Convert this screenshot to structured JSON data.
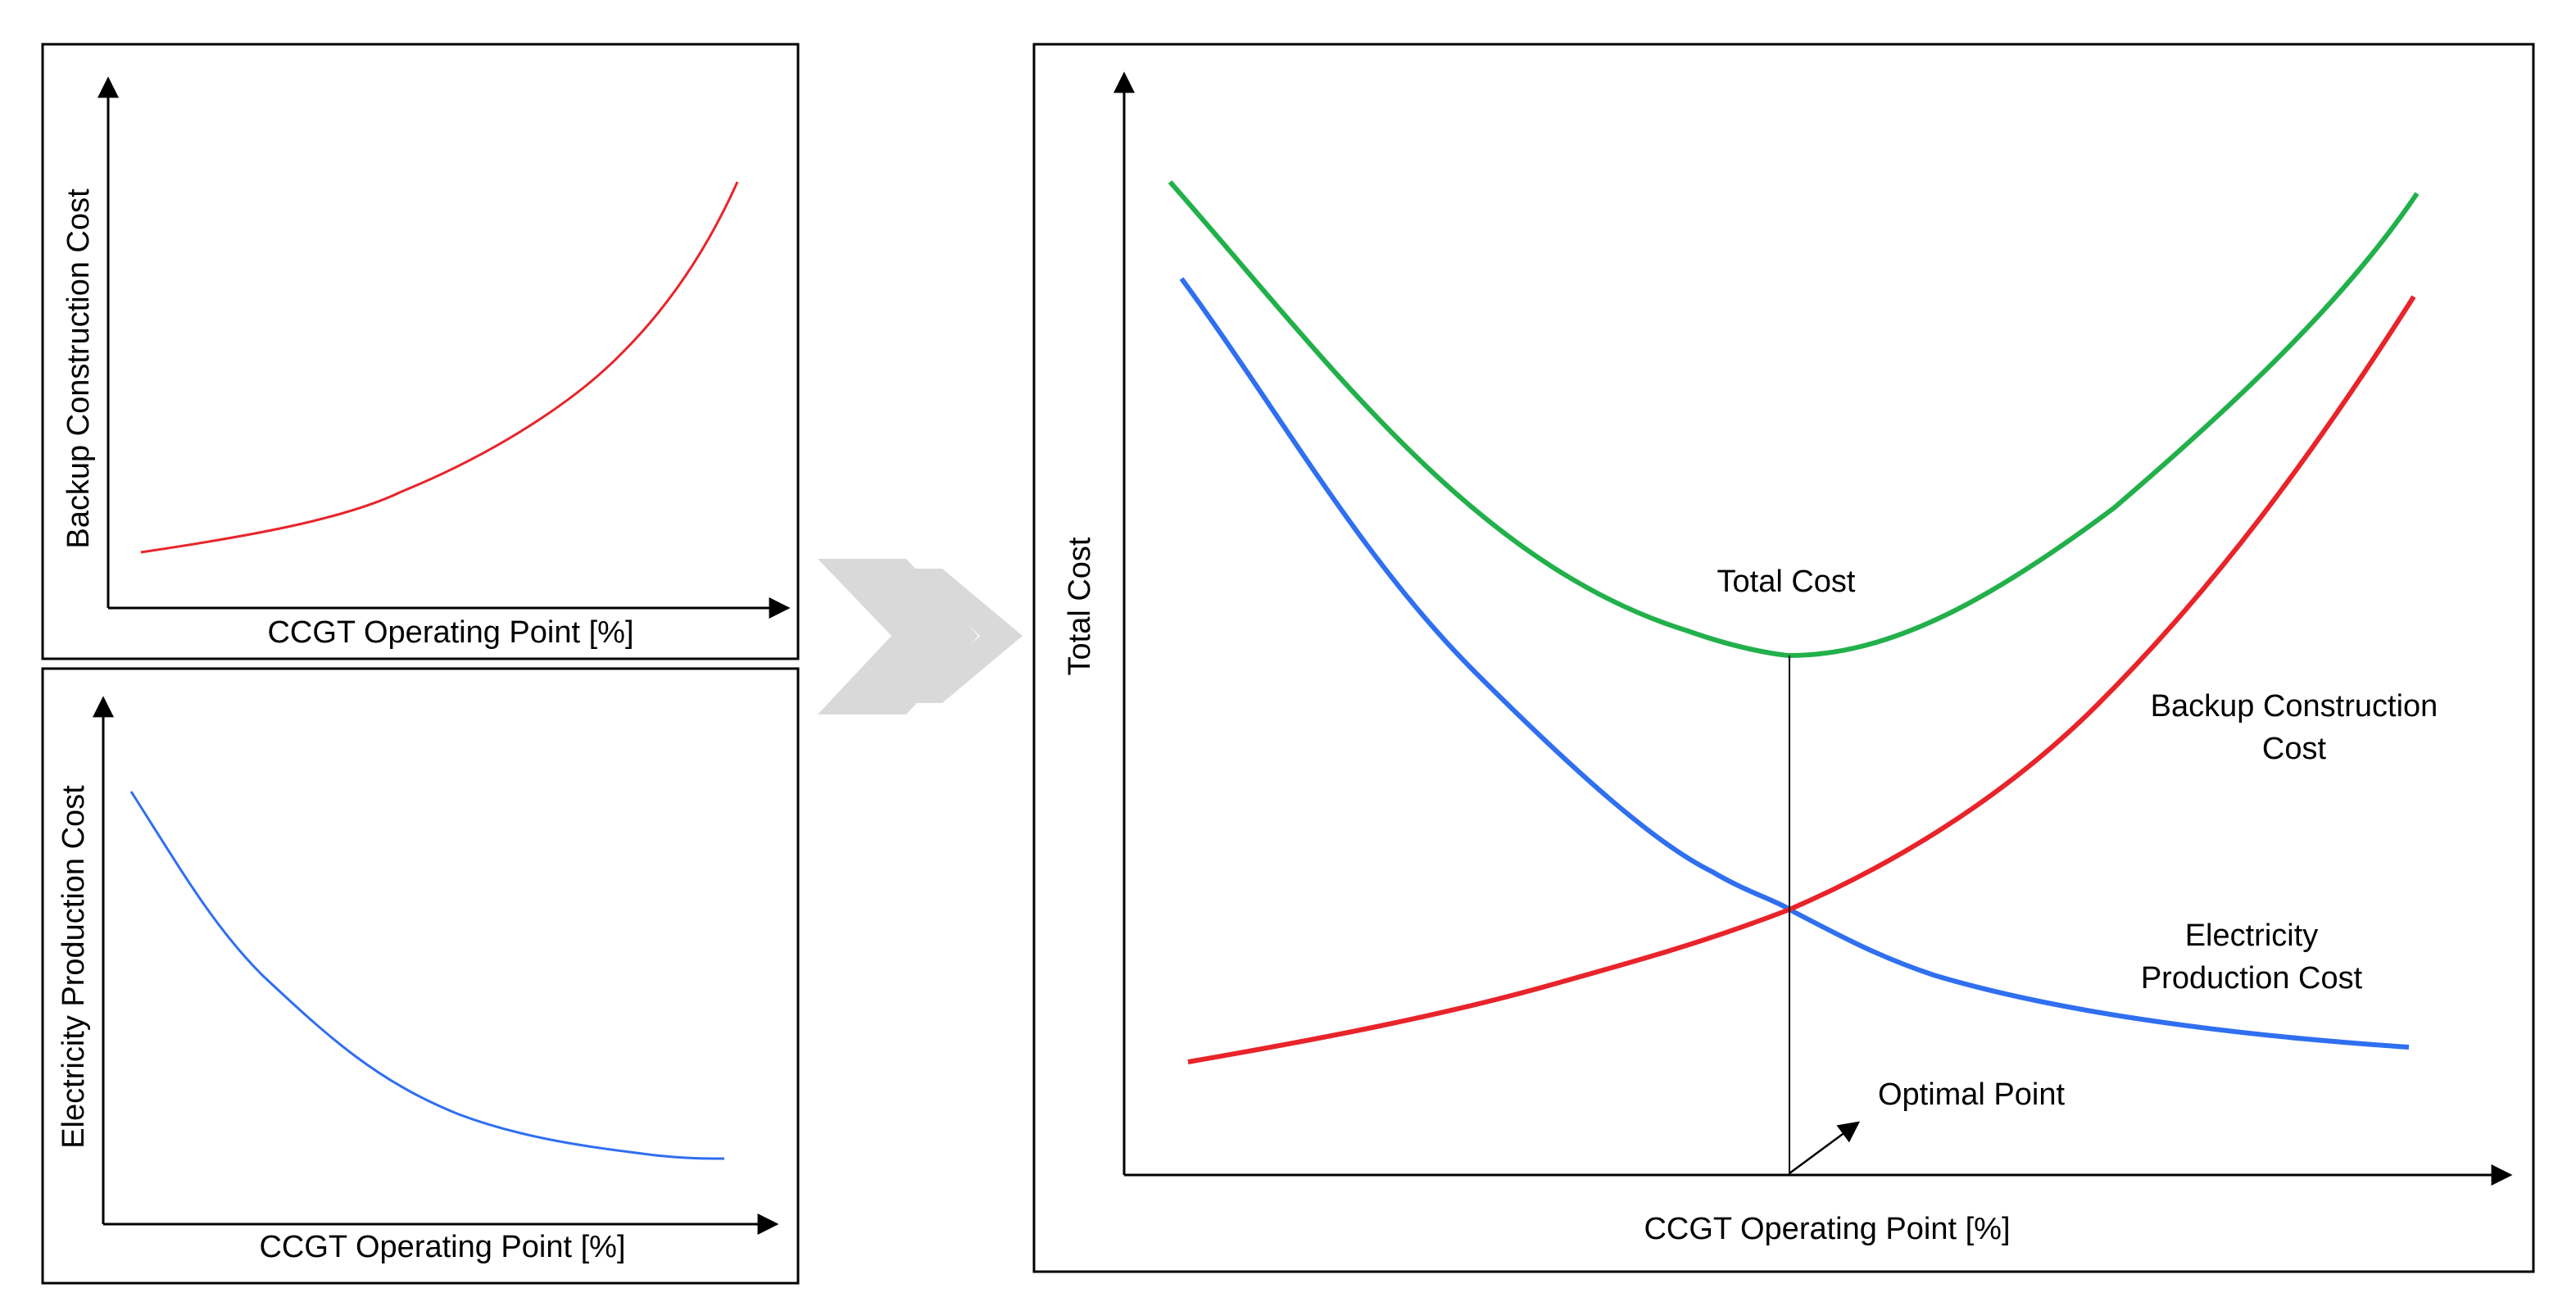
{
  "colors": {
    "backup": "#e8242a",
    "electricity": "#2f6ff0",
    "total": "#22b04b",
    "arrow_shape": "#d9d9d9",
    "axis": "#000000"
  },
  "panels": {
    "backup": {
      "ylabel": "Backup Construction Cost",
      "xlabel": "CCGT Operating Point [%]"
    },
    "electricity": {
      "ylabel": "Electricity Production Cost",
      "xlabel": "CCGT Operating Point [%]"
    },
    "combined": {
      "ylabel": "Total Cost",
      "xlabel": "CCGT Operating Point [%]",
      "total_label": "Total Cost",
      "backup_label_line1": "Backup Construction",
      "backup_label_line2": "Cost",
      "electricity_label_line1": "Electricity",
      "electricity_label_line2": "Production Cost",
      "optimal_label": "Optimal Point"
    }
  },
  "chart_data": {
    "type": "line",
    "x": [
      0,
      10,
      20,
      30,
      40,
      50,
      60,
      70,
      80,
      90,
      100
    ],
    "series": [
      {
        "name": "Backup Construction Cost",
        "values": [
          5,
          10,
          16,
          22,
          30,
          40,
          52,
          65,
          80,
          98,
          120
        ]
      },
      {
        "name": "Electricity Production Cost",
        "values": [
          120,
          92,
          70,
          53,
          40,
          30,
          23,
          18,
          14,
          11,
          9
        ]
      },
      {
        "name": "Total Cost",
        "values": [
          125,
          102,
          86,
          75,
          70,
          70,
          75,
          83,
          94,
          109,
          129
        ]
      }
    ],
    "optimal_point_x": 53,
    "title": "",
    "xlabel": "CCGT Operating Point [%]",
    "ylabel": "Total Cost"
  }
}
